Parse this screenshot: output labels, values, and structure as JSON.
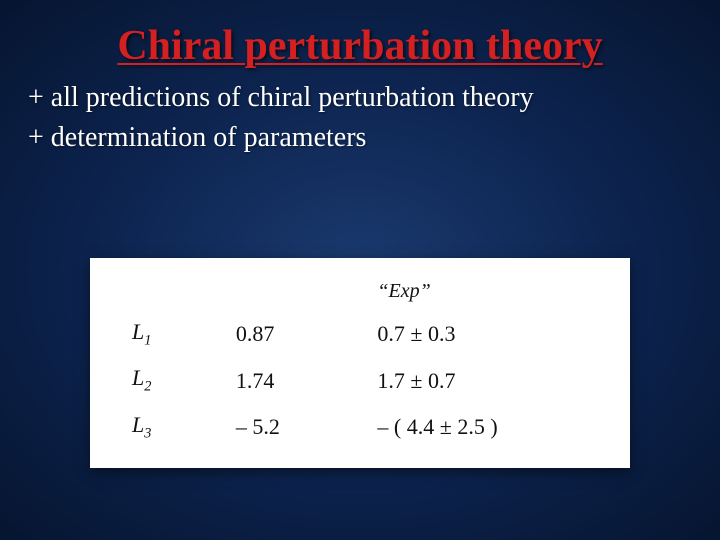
{
  "title": "Chiral perturbation theory",
  "bullets": {
    "line1": "+ all predictions of chiral perturbation theory",
    "line2": "+ determination of parameters"
  },
  "table": {
    "header_exp": "“Exp”",
    "rows": [
      {
        "label_main": "L",
        "label_sub": "1",
        "value": "0.87",
        "exp": "0.7 ± 0.3"
      },
      {
        "label_main": "L",
        "label_sub": "2",
        "value": "1.74",
        "exp": "1.7 ± 0.7"
      },
      {
        "label_main": "L",
        "label_sub": "3",
        "value": "– 5.2",
        "exp": "– ( 4.4 ± 2.5 )"
      }
    ]
  }
}
